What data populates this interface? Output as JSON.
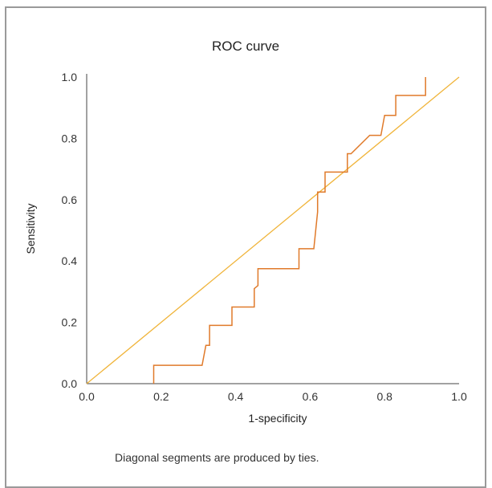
{
  "chart_data": {
    "type": "line",
    "title": "ROC curve",
    "xlabel": "1-specificity",
    "ylabel": "Sensitivity",
    "xlim": [
      0.0,
      1.0
    ],
    "ylim": [
      0.0,
      1.0
    ],
    "x_ticks": [
      "0.0",
      "0.2",
      "0.4",
      "0.6",
      "0.8",
      "1.0"
    ],
    "y_ticks": [
      "0.0",
      "0.2",
      "0.4",
      "0.6",
      "0.8",
      "1.0"
    ],
    "grid": false,
    "colors": {
      "curve": "#e07a2a",
      "reference": "#f0b43a",
      "axis": "#444444"
    },
    "series": [
      {
        "x": [
          0.18,
          0.18,
          0.31,
          0.32,
          0.33,
          0.33,
          0.39,
          0.39,
          0.45,
          0.45,
          0.46,
          0.46,
          0.57,
          0.57,
          0.61,
          0.62,
          0.62,
          0.64,
          0.64,
          0.7,
          0.7,
          0.71,
          0.76,
          0.79,
          0.8,
          0.83,
          0.83,
          0.91,
          0.91
        ],
        "y": [
          0.0,
          0.06,
          0.06,
          0.125,
          0.125,
          0.19,
          0.19,
          0.25,
          0.25,
          0.31,
          0.32,
          0.375,
          0.375,
          0.44,
          0.44,
          0.56,
          0.625,
          0.625,
          0.69,
          0.69,
          0.75,
          0.75,
          0.81,
          0.81,
          0.875,
          0.875,
          0.94,
          0.94,
          1.0
        ]
      },
      {
        "x": [
          0.0,
          1.0
        ],
        "y": [
          0.0,
          1.0
        ]
      }
    ]
  },
  "footnote": "Diagonal segments are produced by ties."
}
